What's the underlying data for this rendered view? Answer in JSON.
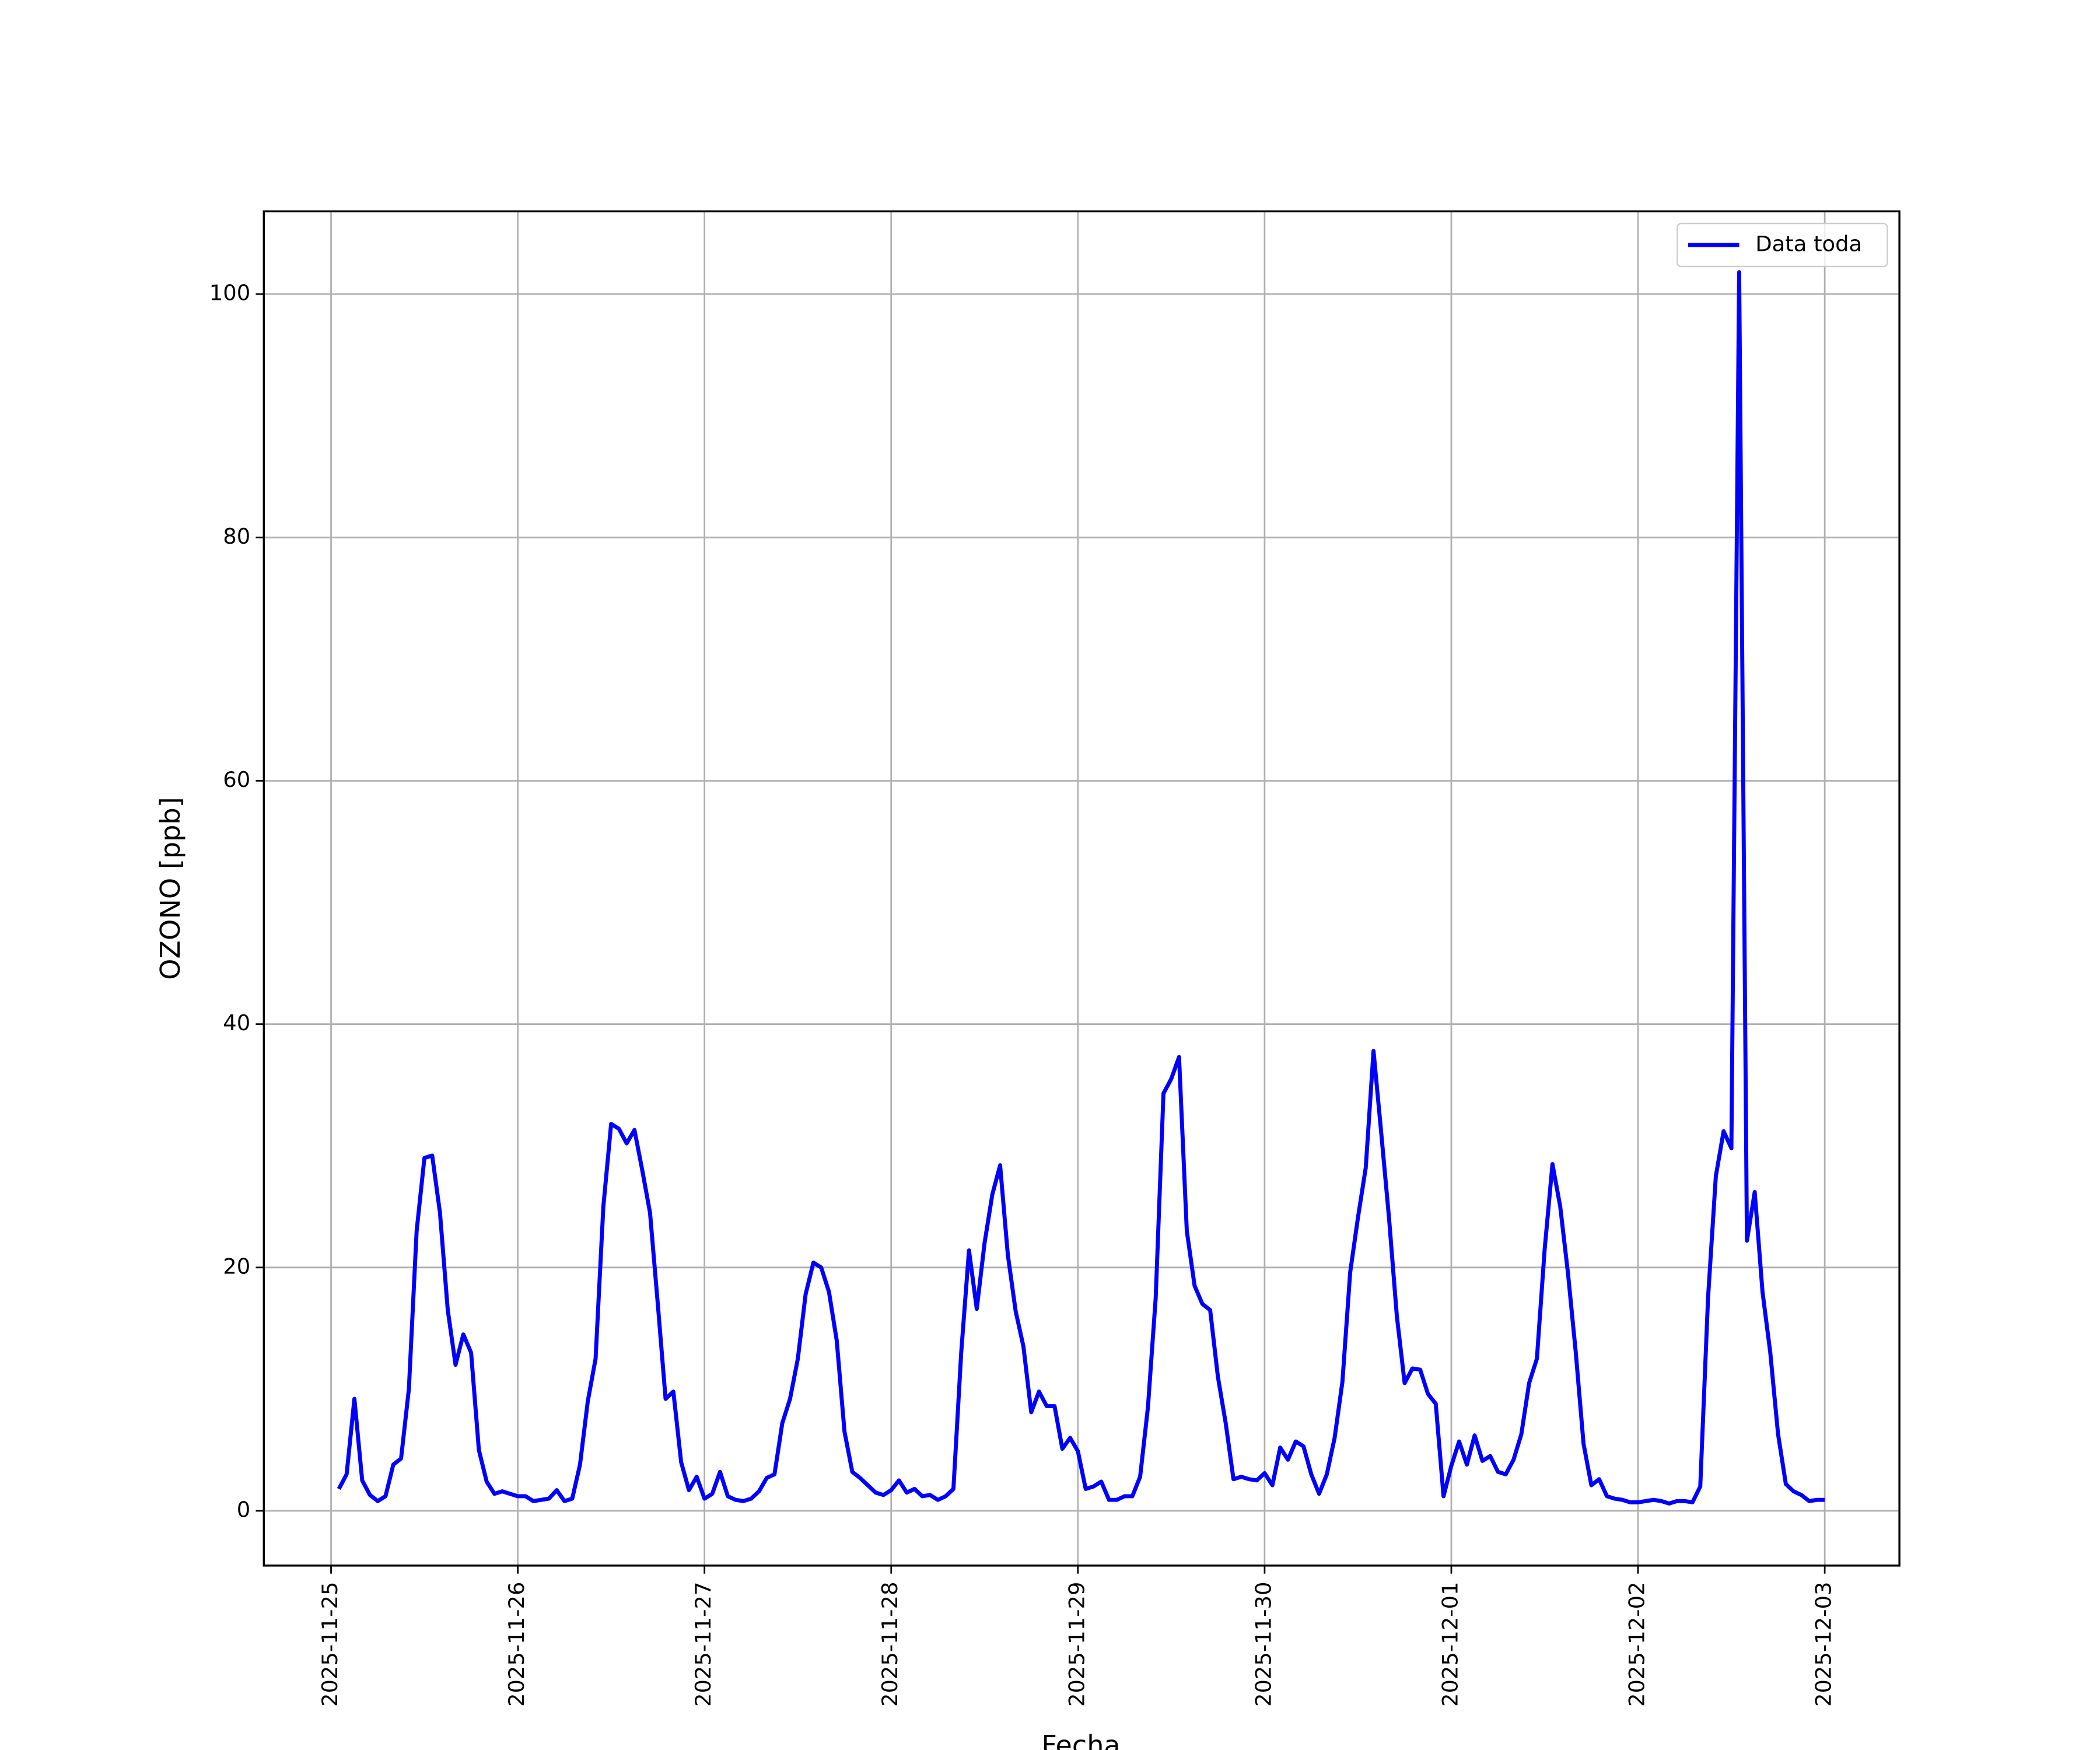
{
  "chart_data": {
    "type": "line",
    "xlabel": "Fecha",
    "ylabel": "OZONO [ppb]",
    "x": [
      0.0417,
      0.0833,
      0.125,
      0.1667,
      0.2083,
      0.25,
      0.2917,
      0.3333,
      0.375,
      0.4167,
      0.4583,
      0.5,
      0.5417,
      0.5833,
      0.625,
      0.6667,
      0.7083,
      0.75,
      0.7917,
      0.8333,
      0.875,
      0.9167,
      0.9583,
      1,
      1.0417,
      1.0833,
      1.125,
      1.1667,
      1.2083,
      1.25,
      1.2917,
      1.3333,
      1.375,
      1.4167,
      1.4583,
      1.5,
      1.5417,
      1.5833,
      1.625,
      1.6667,
      1.7083,
      1.75,
      1.7917,
      1.8333,
      1.875,
      1.9167,
      1.9583,
      2,
      2.0417,
      2.0833,
      2.125,
      2.1667,
      2.2083,
      2.25,
      2.2917,
      2.3333,
      2.375,
      2.4167,
      2.4583,
      2.5,
      2.5417,
      2.5833,
      2.625,
      2.6667,
      2.7083,
      2.75,
      2.7917,
      2.8333,
      2.875,
      2.9167,
      2.9583,
      3,
      3.0417,
      3.0833,
      3.125,
      3.1667,
      3.2083,
      3.25,
      3.2917,
      3.3333,
      3.375,
      3.4167,
      3.4583,
      3.5,
      3.5417,
      3.5833,
      3.625,
      3.6667,
      3.7083,
      3.75,
      3.7917,
      3.8333,
      3.875,
      3.9167,
      3.9583,
      4,
      4.0417,
      4.0833,
      4.125,
      4.1667,
      4.2083,
      4.25,
      4.2917,
      4.3333,
      4.375,
      4.4167,
      4.4583,
      4.5,
      4.5417,
      4.5833,
      4.625,
      4.6667,
      4.7083,
      4.75,
      4.7917,
      4.8333,
      4.875,
      4.9167,
      4.9583,
      5,
      5.0417,
      5.0833,
      5.125,
      5.1667,
      5.2083,
      5.25,
      5.2917,
      5.3333,
      5.375,
      5.4167,
      5.4583,
      5.5,
      5.5417,
      5.5833,
      5.625,
      5.6667,
      5.7083,
      5.75,
      5.7917,
      5.8333,
      5.875,
      5.9167,
      5.9583,
      6,
      6.0417,
      6.0833,
      6.125,
      6.1667,
      6.2083,
      6.25,
      6.2917,
      6.3333,
      6.375,
      6.4167,
      6.4583,
      6.5,
      6.5417,
      6.5833,
      6.625,
      6.6667,
      6.7083,
      6.75,
      6.7917,
      6.8333,
      6.875,
      6.9167,
      6.9583,
      7,
      7.0417,
      7.0833,
      7.125,
      7.1667,
      7.2083,
      7.25,
      7.2917,
      7.3333,
      7.375,
      7.4167,
      7.4583,
      7.5,
      7.5417,
      7.5833,
      7.625,
      7.6667,
      7.7083,
      7.75,
      7.7917,
      7.8333,
      7.875,
      7.9167,
      7.9583,
      8
    ],
    "series": [
      {
        "name": "Data toda",
        "color": "#0000ff",
        "values": [
          1.8,
          3,
          9.2,
          2.5,
          1.3,
          0.8,
          1.2,
          3.8,
          4.3,
          10,
          23,
          29,
          29.2,
          24.5,
          16.5,
          12,
          14.5,
          13,
          5,
          2.4,
          1.4,
          1.6,
          1.4,
          1.2,
          1.2,
          0.8,
          0.9,
          1.0,
          1.7,
          0.8,
          1.0,
          3.8,
          9.0,
          12.5,
          25,
          31.8,
          31.4,
          30.2,
          31.3,
          28,
          24.5,
          17,
          9.2,
          9.8,
          4,
          1.7,
          2.8,
          1.0,
          1.4,
          3.2,
          1.2,
          0.9,
          0.8,
          1.0,
          1.6,
          2.7,
          3.0,
          7.2,
          9.2,
          12.5,
          17.8,
          20.4,
          20,
          18,
          14,
          6.5,
          3.2,
          2.7,
          2.1,
          1.5,
          1.3,
          1.7,
          2.5,
          1.5,
          1.8,
          1.2,
          1.3,
          0.9,
          1.2,
          1.8,
          13,
          21.4,
          16.6,
          22,
          26,
          28.4,
          21,
          16.4,
          13.5,
          8.1,
          9.8,
          8.6,
          8.6,
          5.1,
          6.0,
          4.9,
          1.8,
          2.0,
          2.4,
          0.9,
          0.9,
          1.2,
          1.2,
          2.8,
          8.5,
          17.5,
          34.3,
          35.5,
          37.3,
          23,
          18.5,
          17,
          16.5,
          11,
          7.2,
          2.6,
          2.8,
          2.6,
          2.5,
          3.1,
          2.1,
          5.2,
          4.2,
          5.7,
          5.3,
          3.0,
          1.4,
          3.0,
          6.0,
          10.6,
          19.6,
          24.1,
          28.2,
          37.8,
          31,
          24,
          16,
          10.5,
          11.7,
          11.6,
          9.6,
          8.8,
          1.2,
          3.7,
          5.7,
          3.8,
          6.2,
          4.1,
          4.5,
          3.2,
          3.0,
          4.2,
          6.3,
          10.5,
          12.5,
          21.5,
          28.5,
          25,
          19.5,
          13,
          5.5,
          2.1,
          2.6,
          1.2,
          1.0,
          0.9,
          0.7,
          0.7,
          0.8,
          0.9,
          0.8,
          0.6,
          0.8,
          0.8,
          0.7,
          2.0,
          17.5,
          27.5,
          31.2,
          29.8,
          101.8,
          22.2,
          26.2,
          18,
          13,
          6.3,
          2.2,
          1.6,
          1.3,
          0.8,
          0.9,
          0.9
        ]
      }
    ],
    "xlim": [
      -0.36,
      8.4
    ],
    "xticks": [
      {
        "value": 0,
        "label": "2025-11-25"
      },
      {
        "value": 1,
        "label": "2025-11-26"
      },
      {
        "value": 2,
        "label": "2025-11-27"
      },
      {
        "value": 3,
        "label": "2025-11-28"
      },
      {
        "value": 4,
        "label": "2025-11-29"
      },
      {
        "value": 5,
        "label": "2025-11-30"
      },
      {
        "value": 6,
        "label": "2025-12-01"
      },
      {
        "value": 7,
        "label": "2025-12-02"
      },
      {
        "value": 8,
        "label": "2025-12-03"
      }
    ],
    "ylim": [
      -4.5,
      106.8
    ],
    "yticks": [
      0,
      20,
      40,
      60,
      80,
      100
    ],
    "grid": true,
    "legend": "upper right"
  }
}
